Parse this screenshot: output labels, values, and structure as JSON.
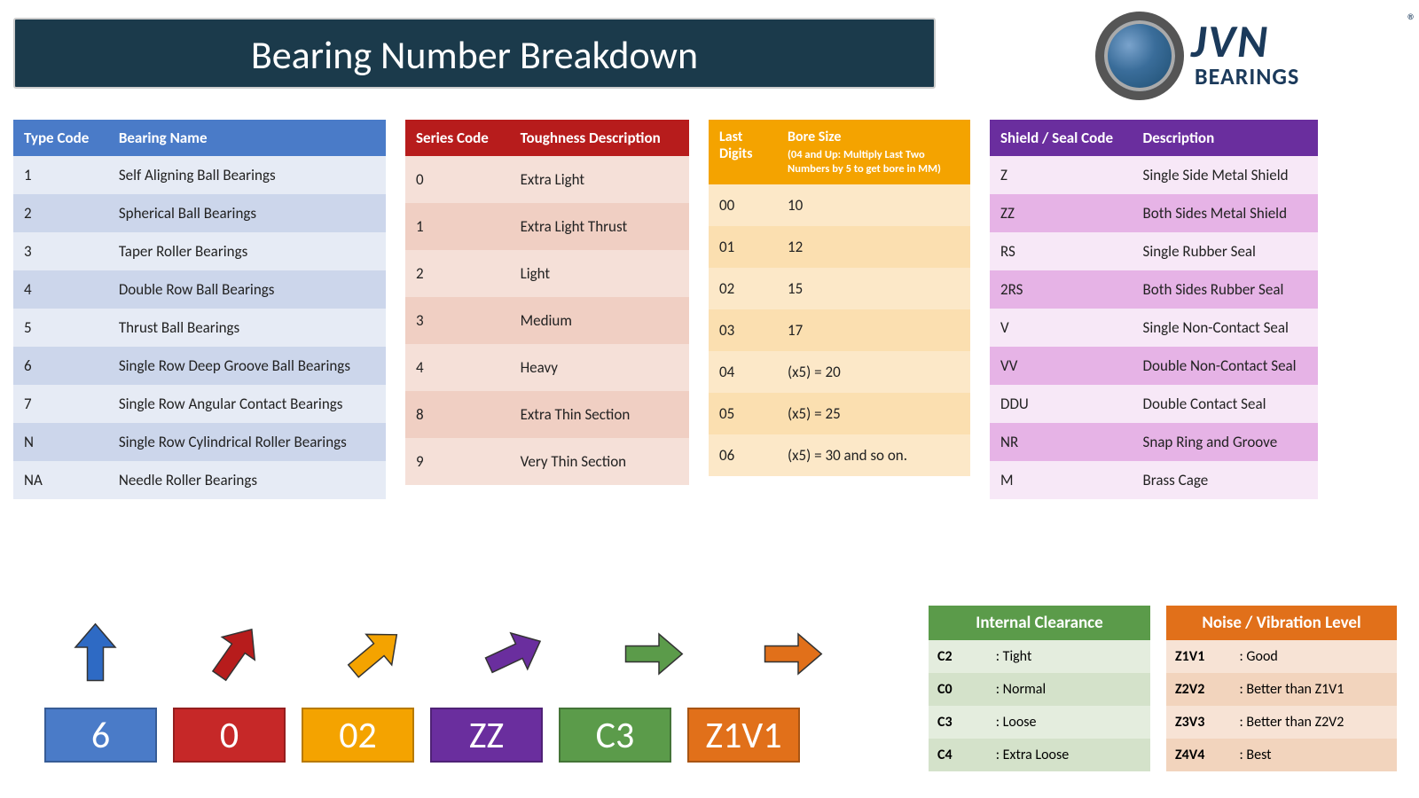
{
  "title": "Bearing Number Breakdown",
  "logo": {
    "brand": "JVN",
    "sub": "BEARINGS",
    "reg": "®"
  },
  "type_table": {
    "header": [
      "Type Code",
      "Bearing Name"
    ],
    "colors": {
      "header_bg": "#4a7bc8",
      "row_even": "#e6ebf5",
      "row_odd": "#ccd6eb"
    },
    "rows": [
      [
        "1",
        "Self Aligning Ball Bearings"
      ],
      [
        "2",
        "Spherical Ball Bearings"
      ],
      [
        "3",
        "Taper Roller Bearings"
      ],
      [
        "4",
        "Double Row Ball Bearings"
      ],
      [
        "5",
        "Thrust Ball Bearings"
      ],
      [
        "6",
        "Single Row Deep Groove Ball Bearings"
      ],
      [
        "7",
        "Single Row Angular Contact Bearings"
      ],
      [
        "N",
        "Single Row Cylindrical Roller Bearings"
      ],
      [
        "NA",
        "Needle Roller Bearings"
      ]
    ]
  },
  "series_table": {
    "header": [
      "Series Code",
      "Toughness Description"
    ],
    "colors": {
      "header_bg": "#b71c1c",
      "row_even": "#f5e0d8",
      "row_odd": "#f0cfc3"
    },
    "rows": [
      [
        "0",
        "Extra Light"
      ],
      [
        "1",
        "Extra Light Thrust"
      ],
      [
        "2",
        "Light"
      ],
      [
        "3",
        "Medium"
      ],
      [
        "4",
        "Heavy"
      ],
      [
        "8",
        "Extra Thin Section"
      ],
      [
        "9",
        "Very Thin Section"
      ]
    ]
  },
  "bore_table": {
    "header": [
      "Last Digits",
      "Bore Size"
    ],
    "header_sub": "(04 and Up: Multiply Last Two Numbers by 5 to get bore in MM)",
    "colors": {
      "header_bg": "#f4a300",
      "row_even": "#fce8c8",
      "row_odd": "#fbdfb0"
    },
    "rows": [
      [
        "00",
        "10"
      ],
      [
        "01",
        "12"
      ],
      [
        "02",
        "15"
      ],
      [
        "03",
        "17"
      ],
      [
        "04",
        "(x5) = 20"
      ],
      [
        "05",
        "(x5) = 25"
      ],
      [
        "06",
        "(x5) = 30 and so on."
      ]
    ]
  },
  "shield_table": {
    "header": [
      "Shield / Seal Code",
      "Description"
    ],
    "colors": {
      "header_bg": "#6a2e9e",
      "row_even": "#f7e8f7",
      "row_odd": "#e6b3e6"
    },
    "rows": [
      [
        "Z",
        "Single Side Metal Shield"
      ],
      [
        "ZZ",
        "Both Sides Metal Shield"
      ],
      [
        "RS",
        "Single Rubber Seal"
      ],
      [
        "2RS",
        "Both Sides Rubber Seal"
      ],
      [
        "V",
        "Single Non-Contact Seal"
      ],
      [
        "VV",
        "Double Non-Contact Seal"
      ],
      [
        "DDU",
        "Double Contact Seal"
      ],
      [
        "NR",
        "Snap Ring and Groove"
      ],
      [
        "M",
        "Brass Cage"
      ]
    ]
  },
  "codes": [
    {
      "label": "6",
      "bg": "#4a7bc8",
      "arrow_color": "#2e6ac4",
      "arrow_rot": 0
    },
    {
      "label": "0",
      "bg": "#c62828",
      "arrow_color": "#b71c1c",
      "arrow_rot": 35
    },
    {
      "label": "02",
      "bg": "#f4a300",
      "arrow_color": "#f4a300",
      "arrow_rot": 50
    },
    {
      "label": "ZZ",
      "bg": "#6a2e9e",
      "arrow_color": "#6a2e9e",
      "arrow_rot": 65
    },
    {
      "label": "C3",
      "bg": "#5b9b4a",
      "arrow_color": "#5b9b4a",
      "arrow_rot": 90
    },
    {
      "label": "Z1V1",
      "bg": "#e1701a",
      "arrow_color": "#e1701a",
      "arrow_rot": 90
    }
  ],
  "clearance_table": {
    "title": "Internal Clearance",
    "colors": {
      "header_bg": "#5b9b4a",
      "row_even": "#e4edde",
      "row_odd": "#d4e2ca"
    },
    "rows": [
      [
        "C2",
        ": Tight"
      ],
      [
        "C0",
        ": Normal"
      ],
      [
        "C3",
        ": Loose"
      ],
      [
        "C4",
        ": Extra Loose"
      ]
    ]
  },
  "noise_table": {
    "title": "Noise / Vibration Level",
    "colors": {
      "header_bg": "#e1701a",
      "row_even": "#f7e3d5",
      "row_odd": "#f2d4bd"
    },
    "rows": [
      [
        "Z1V1",
        ": Good"
      ],
      [
        "Z2V2",
        ": Better than Z1V1"
      ],
      [
        "Z3V3",
        ": Better than Z2V2"
      ],
      [
        "Z4V4",
        ": Best"
      ]
    ]
  }
}
